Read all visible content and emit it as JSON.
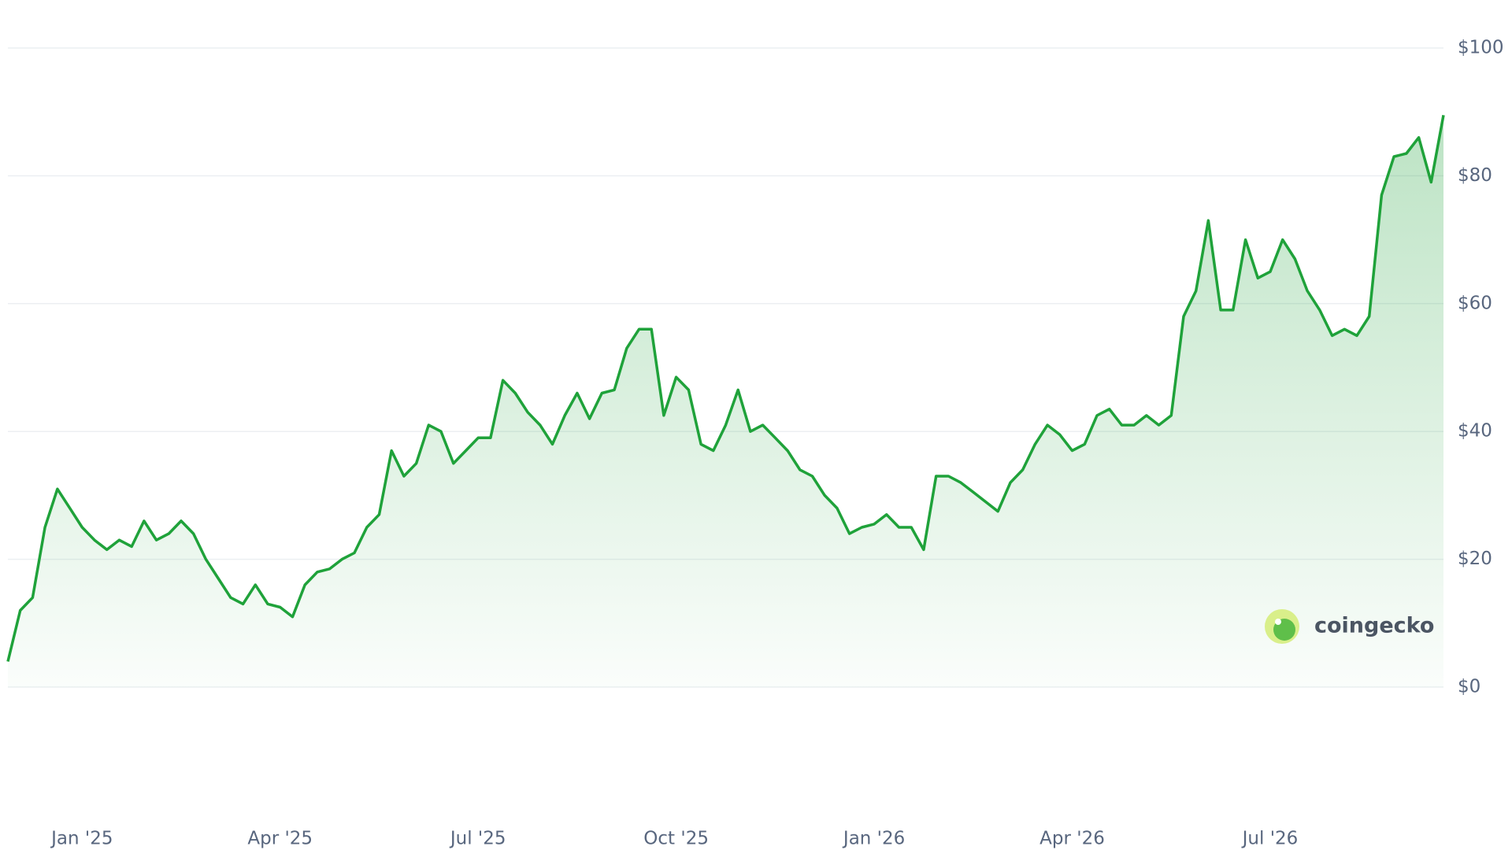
{
  "chart_data": {
    "type": "area-line",
    "color": "#1fa23a",
    "watermark": "coingecko",
    "categories": [
      null,
      null,
      null,
      null,
      null,
      null,
      "Jan '25",
      null,
      null,
      null,
      null,
      null,
      null,
      null,
      null,
      null,
      null,
      null,
      null,
      null,
      null,
      null,
      "Apr '25",
      null,
      null,
      null,
      null,
      null,
      null,
      null,
      null,
      null,
      null,
      null,
      null,
      null,
      null,
      null,
      "Jul '25",
      null,
      null,
      null,
      null,
      null,
      null,
      null,
      null,
      null,
      null,
      null,
      null,
      null,
      null,
      null,
      "Oct '25",
      null,
      null,
      null,
      null,
      null,
      null,
      null,
      null,
      null,
      null,
      null,
      null,
      null,
      null,
      null,
      "Jan '26",
      null,
      null,
      null,
      null,
      null,
      null,
      null,
      null,
      null,
      null,
      null,
      null,
      null,
      null,
      null,
      "Apr '26",
      null,
      null,
      null,
      null,
      null,
      null,
      null,
      null,
      null,
      null,
      null,
      null,
      null,
      null,
      null,
      "Jul '26",
      null,
      null,
      null,
      null,
      null,
      null,
      null,
      null,
      null,
      null,
      null,
      null,
      null,
      null
    ],
    "values": [
      4,
      12,
      14,
      25,
      31,
      28,
      25,
      23,
      21.5,
      23,
      22,
      26,
      23,
      24,
      26,
      24,
      20,
      17,
      14,
      13,
      16,
      13,
      12.5,
      11,
      16,
      18,
      18.5,
      20,
      21,
      25,
      27,
      37,
      33,
      35,
      41,
      40,
      35,
      37,
      39,
      39,
      48,
      46,
      43,
      41,
      38,
      42.5,
      46,
      42,
      46,
      46.5,
      53,
      56,
      56,
      42.5,
      48.5,
      46.5,
      38,
      37,
      41,
      46.5,
      40,
      41,
      39,
      37,
      34,
      33,
      30,
      28,
      24,
      25,
      25.5,
      27,
      25,
      25,
      21.5,
      33,
      33,
      32,
      30.5,
      29,
      27.5,
      32,
      34,
      38,
      41,
      39.5,
      37,
      38,
      42.5,
      43.5,
      41,
      41,
      42.5,
      41,
      42.5,
      58,
      62,
      73,
      59,
      59,
      70,
      64,
      65,
      70,
      67,
      62,
      59,
      55,
      56,
      55,
      58,
      77,
      83,
      83.5,
      86,
      79,
      89.5
    ],
    "ylim": [
      0,
      100
    ],
    "yticks": [
      {
        "value": 0,
        "label": "$0"
      },
      {
        "value": 20,
        "label": "$20"
      },
      {
        "value": 40,
        "label": "$40"
      },
      {
        "value": 60,
        "label": "$60"
      },
      {
        "value": 80,
        "label": "$80"
      },
      {
        "value": 100,
        "label": "$100"
      }
    ],
    "grid": true
  }
}
